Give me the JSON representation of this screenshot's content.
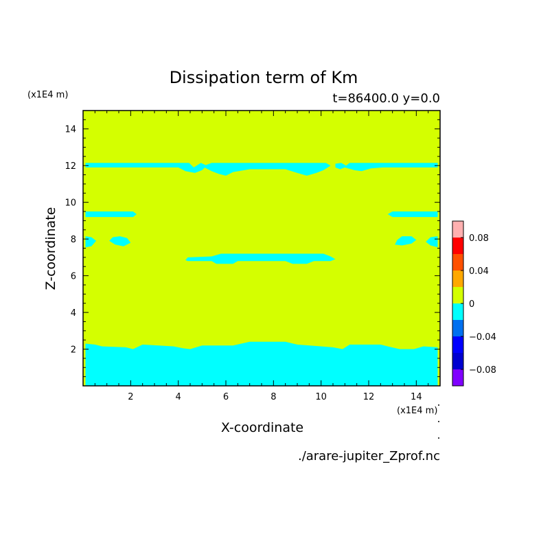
{
  "chart_data": {
    "type": "heatmap",
    "title": "Dissipation term of Km",
    "subtitle": "t=86400.0 y=0.0",
    "xlabel": "X-coordinate",
    "ylabel": "Z-coordinate",
    "x_unit": "(x1E4 m)",
    "y_unit": "(x1E4 m)",
    "source_file": "./arare-jupiter_Zprof.nc",
    "xlim": [
      0,
      15
    ],
    "ylim": [
      0,
      15
    ],
    "x_ticks": [
      2,
      4,
      6,
      8,
      10,
      12,
      14
    ],
    "y_ticks": [
      2,
      4,
      6,
      8,
      10,
      12,
      14
    ],
    "background_level": {
      "range": [
        0,
        0.02
      ],
      "color": "#d4ff00"
    },
    "regions": [
      {
        "name": "lower band",
        "value_range": [
          -0.02,
          0
        ],
        "color": "#00ffff",
        "polygon": [
          [
            0.1,
            0
          ],
          [
            14.9,
            0
          ],
          [
            14.9,
            2.1
          ],
          [
            14.3,
            2.15
          ],
          [
            13.9,
            2.0
          ],
          [
            13.3,
            2.0
          ],
          [
            12.8,
            2.15
          ],
          [
            12.5,
            2.25
          ],
          [
            11.2,
            2.25
          ],
          [
            10.9,
            2.0
          ],
          [
            10.5,
            2.1
          ],
          [
            10.0,
            2.15
          ],
          [
            9.0,
            2.25
          ],
          [
            8.5,
            2.4
          ],
          [
            7.0,
            2.4
          ],
          [
            6.3,
            2.2
          ],
          [
            5.0,
            2.2
          ],
          [
            4.5,
            2.0
          ],
          [
            4.2,
            2.05
          ],
          [
            3.8,
            2.15
          ],
          [
            2.5,
            2.25
          ],
          [
            2.1,
            2.0
          ],
          [
            1.8,
            2.1
          ],
          [
            0.8,
            2.15
          ],
          [
            0.5,
            2.25
          ],
          [
            0.1,
            2.3
          ]
        ]
      },
      {
        "name": "upper band left",
        "value_range": [
          -0.02,
          0
        ],
        "color": "#00ffff",
        "polygon": [
          [
            0.1,
            11.9
          ],
          [
            4.0,
            11.9
          ],
          [
            4.3,
            11.7
          ],
          [
            4.7,
            11.6
          ],
          [
            5.0,
            11.75
          ],
          [
            5.2,
            12.0
          ],
          [
            4.95,
            12.15
          ],
          [
            4.65,
            11.9
          ],
          [
            4.45,
            12.15
          ],
          [
            0.1,
            12.15
          ]
        ]
      },
      {
        "name": "upper band middle",
        "value_range": [
          -0.02,
          0
        ],
        "color": "#00ffff",
        "polygon": [
          [
            5.1,
            11.9
          ],
          [
            5.4,
            11.7
          ],
          [
            5.7,
            11.55
          ],
          [
            6.0,
            11.45
          ],
          [
            6.3,
            11.65
          ],
          [
            7.0,
            11.8
          ],
          [
            8.5,
            11.8
          ],
          [
            9.0,
            11.6
          ],
          [
            9.4,
            11.45
          ],
          [
            9.8,
            11.6
          ],
          [
            10.1,
            11.75
          ],
          [
            10.4,
            12.0
          ],
          [
            10.2,
            12.15
          ],
          [
            5.4,
            12.15
          ],
          [
            5.1,
            12.0
          ]
        ]
      },
      {
        "name": "upper band right",
        "value_range": [
          -0.02,
          0
        ],
        "color": "#00ffff",
        "polygon": [
          [
            10.6,
            11.9
          ],
          [
            10.8,
            11.8
          ],
          [
            11.0,
            11.9
          ],
          [
            11.4,
            11.75
          ],
          [
            11.7,
            11.7
          ],
          [
            12.1,
            11.85
          ],
          [
            12.6,
            11.9
          ],
          [
            14.9,
            11.9
          ],
          [
            14.9,
            12.15
          ],
          [
            11.2,
            12.15
          ],
          [
            11.05,
            12.0
          ],
          [
            10.85,
            12.15
          ],
          [
            10.6,
            12.1
          ]
        ]
      },
      {
        "name": "z9.3 strip left",
        "value_range": [
          -0.02,
          0
        ],
        "color": "#00ffff",
        "polygon": [
          [
            0.1,
            9.2
          ],
          [
            2.1,
            9.2
          ],
          [
            2.25,
            9.35
          ],
          [
            2.1,
            9.5
          ],
          [
            0.1,
            9.5
          ]
        ]
      },
      {
        "name": "z9.3 strip right",
        "value_range": [
          -0.02,
          0
        ],
        "color": "#00ffff",
        "polygon": [
          [
            12.8,
            9.35
          ],
          [
            13.0,
            9.2
          ],
          [
            14.9,
            9.2
          ],
          [
            14.9,
            9.5
          ],
          [
            13.0,
            9.5
          ]
        ]
      },
      {
        "name": "z7.9 blob left edge",
        "value_range": [
          -0.02,
          0
        ],
        "color": "#00ffff",
        "polygon": [
          [
            0.1,
            7.55
          ],
          [
            0.35,
            7.6
          ],
          [
            0.55,
            7.9
          ],
          [
            0.35,
            8.1
          ],
          [
            0.1,
            8.15
          ]
        ]
      },
      {
        "name": "z7.9 blob left",
        "value_range": [
          -0.02,
          0
        ],
        "color": "#00ffff",
        "polygon": [
          [
            1.1,
            7.9
          ],
          [
            1.35,
            7.7
          ],
          [
            1.7,
            7.6
          ],
          [
            2.0,
            7.8
          ],
          [
            1.85,
            8.05
          ],
          [
            1.55,
            8.15
          ],
          [
            1.25,
            8.1
          ]
        ]
      },
      {
        "name": "z7.9 blob right",
        "value_range": [
          -0.02,
          0
        ],
        "color": "#00ffff",
        "polygon": [
          [
            13.1,
            7.7
          ],
          [
            13.4,
            7.65
          ],
          [
            13.8,
            7.75
          ],
          [
            14.0,
            7.95
          ],
          [
            13.8,
            8.15
          ],
          [
            13.4,
            8.15
          ],
          [
            13.2,
            7.95
          ]
        ]
      },
      {
        "name": "z7.9 blob right edge",
        "value_range": [
          -0.02,
          0
        ],
        "color": "#00ffff",
        "polygon": [
          [
            14.9,
            7.55
          ],
          [
            14.6,
            7.65
          ],
          [
            14.4,
            7.85
          ],
          [
            14.6,
            8.1
          ],
          [
            14.9,
            8.15
          ]
        ]
      },
      {
        "name": "z6.9 strip",
        "value_range": [
          -0.02,
          0
        ],
        "color": "#00ffff",
        "polygon": [
          [
            4.3,
            6.85
          ],
          [
            4.4,
            6.8
          ],
          [
            5.4,
            6.8
          ],
          [
            5.6,
            6.65
          ],
          [
            6.3,
            6.65
          ],
          [
            6.5,
            6.8
          ],
          [
            8.5,
            6.8
          ],
          [
            8.8,
            6.65
          ],
          [
            9.4,
            6.65
          ],
          [
            9.7,
            6.8
          ],
          [
            10.4,
            6.8
          ],
          [
            10.6,
            6.9
          ],
          [
            10.4,
            7.05
          ],
          [
            10.1,
            7.2
          ],
          [
            5.8,
            7.2
          ],
          [
            5.4,
            7.05
          ],
          [
            4.4,
            7.0
          ]
        ]
      }
    ],
    "colorbar": {
      "levels": [
        -0.1,
        -0.08,
        -0.06,
        -0.04,
        -0.02,
        0,
        0.02,
        0.04,
        0.06,
        0.08,
        0.1
      ],
      "colors": [
        "#8000ff",
        "#0000d0",
        "#0000ff",
        "#0070f0",
        "#00ffff",
        "#d4ff00",
        "#ffa800",
        "#ff5000",
        "#ff0000",
        "#ffb0b0"
      ],
      "tick_labels": [
        "0.08",
        "0.04",
        "0",
        "−0.04",
        "−0.08"
      ],
      "tick_values": [
        0.08,
        0.04,
        0,
        -0.04,
        -0.08
      ]
    }
  }
}
